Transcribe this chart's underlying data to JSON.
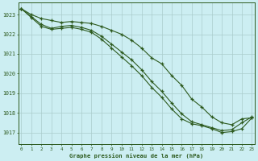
{
  "title": "Graphe pression niveau de la mer (hPa)",
  "bg_color": "#cceef2",
  "grid_color": "#aacccc",
  "line_color": "#2d5a1e",
  "x_ticks": [
    0,
    1,
    2,
    3,
    4,
    5,
    6,
    7,
    8,
    9,
    10,
    11,
    12,
    13,
    14,
    15,
    16,
    17,
    18,
    19,
    20,
    21,
    22,
    23
  ],
  "ylim": [
    1016.4,
    1023.6
  ],
  "xlim": [
    -0.3,
    23.3
  ],
  "yticks": [
    1017,
    1018,
    1019,
    1020,
    1021,
    1022,
    1023
  ],
  "series": [
    {
      "x": [
        0,
        1,
        2,
        3,
        4,
        5,
        6,
        7,
        8,
        9,
        10,
        11,
        12,
        13,
        14,
        15,
        16,
        17,
        18,
        19,
        20,
        21,
        22,
        23
      ],
      "y": [
        1023.3,
        1023.0,
        1022.8,
        1022.7,
        1022.6,
        1022.65,
        1022.6,
        1022.55,
        1022.4,
        1022.2,
        1022.0,
        1021.7,
        1021.3,
        1020.8,
        1020.5,
        1019.9,
        1019.4,
        1018.7,
        1018.3,
        1017.8,
        1017.5,
        1017.4,
        1017.7,
        1017.75
      ]
    },
    {
      "x": [
        0,
        1,
        2,
        3,
        4,
        5,
        6,
        7,
        8,
        9,
        10,
        11,
        12,
        13,
        14,
        15,
        16,
        17,
        18,
        19,
        20,
        21,
        22,
        23
      ],
      "y": [
        1023.3,
        1022.9,
        1022.5,
        1022.3,
        1022.4,
        1022.45,
        1022.35,
        1022.2,
        1021.9,
        1021.5,
        1021.1,
        1020.7,
        1020.2,
        1019.6,
        1019.1,
        1018.5,
        1017.95,
        1017.55,
        1017.4,
        1017.25,
        1017.1,
        1017.15,
        1017.5,
        1017.8
      ]
    },
    {
      "x": [
        0,
        1,
        2,
        3,
        4,
        5,
        6,
        7,
        8,
        9,
        10,
        11,
        12,
        13,
        14,
        15,
        16,
        17,
        18,
        19,
        20,
        21,
        22,
        23
      ],
      "y": [
        1023.3,
        1022.85,
        1022.4,
        1022.25,
        1022.3,
        1022.35,
        1022.25,
        1022.1,
        1021.75,
        1021.3,
        1020.85,
        1020.4,
        1019.9,
        1019.3,
        1018.8,
        1018.2,
        1017.7,
        1017.45,
        1017.35,
        1017.2,
        1017.0,
        1017.05,
        1017.2,
        1017.75
      ]
    }
  ]
}
